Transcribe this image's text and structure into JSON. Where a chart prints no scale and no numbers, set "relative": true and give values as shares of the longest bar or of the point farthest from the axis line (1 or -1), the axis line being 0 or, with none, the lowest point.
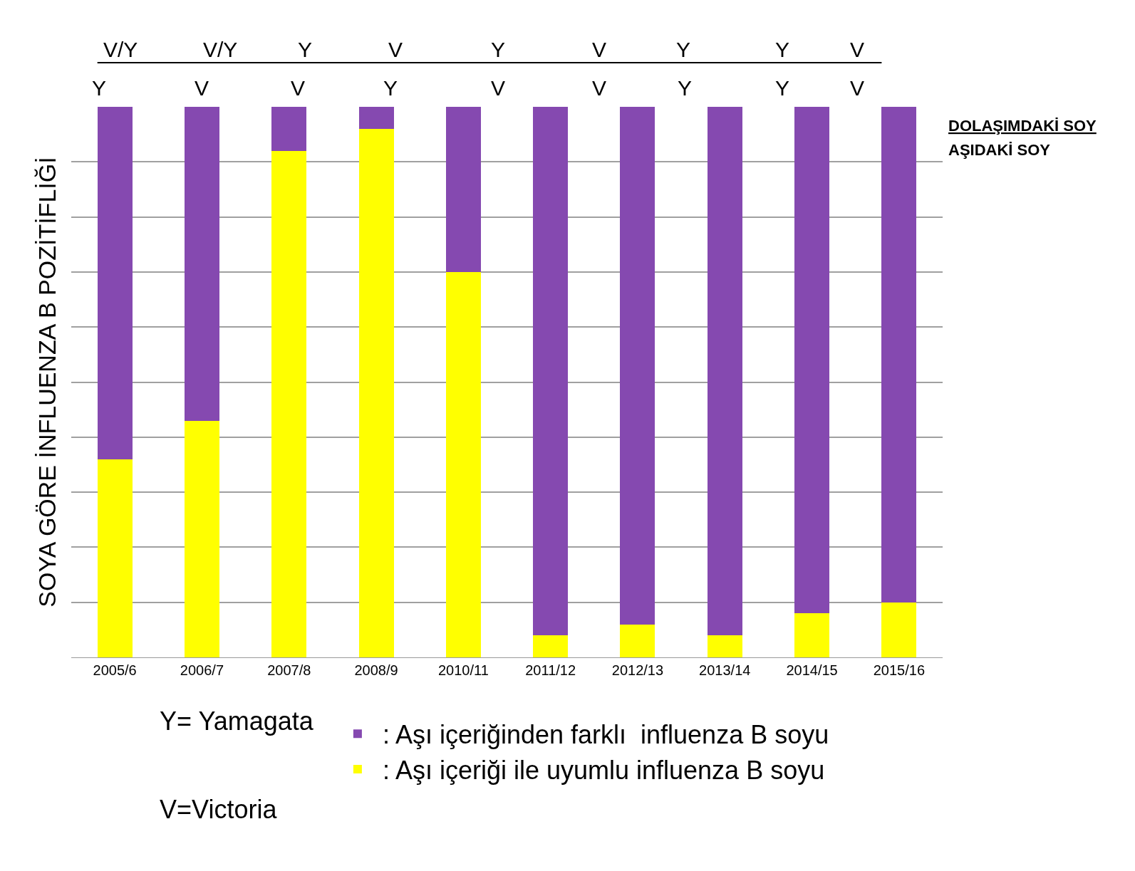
{
  "chart_data": {
    "type": "bar",
    "stacked": true,
    "relative": true,
    "ylabel": "SOYA GÖRE İNFLUENZA B POZİTİFLİĞİ",
    "categories": [
      "2005/6",
      "2006/7",
      "2007/8",
      "2008/9",
      "2010/11",
      "2011/12",
      "2012/13",
      "2013/14",
      "2014/15",
      "2015/16"
    ],
    "series": [
      {
        "name": ": Aşı içeriği ile uyumlu influenza B soyu",
        "color": "#ffff00",
        "values": [
          0.36,
          0.43,
          0.92,
          0.96,
          0.7,
          0.04,
          0.06,
          0.04,
          0.08,
          0.1
        ]
      },
      {
        "name": ": Aşı içeriğinden farklı  influenza B soyu",
        "color": "#8549b0",
        "values": [
          0.64,
          0.57,
          0.08,
          0.04,
          0.3,
          0.96,
          0.94,
          0.96,
          0.92,
          0.9
        ]
      }
    ],
    "grid": "y",
    "legend": "bottom",
    "annotations": [
      "DOLAŞIMDAKİ SOY",
      "AŞIDAKİ SOY",
      "Y= Yamagata",
      "V=Victoria",
      "V/Y",
      "V/Y",
      "Y",
      "V",
      "Y",
      "V",
      "Y",
      "Y",
      "V",
      "Y",
      "V",
      "V",
      "Y",
      "V",
      "V",
      "Y",
      "Y",
      "V"
    ]
  }
}
